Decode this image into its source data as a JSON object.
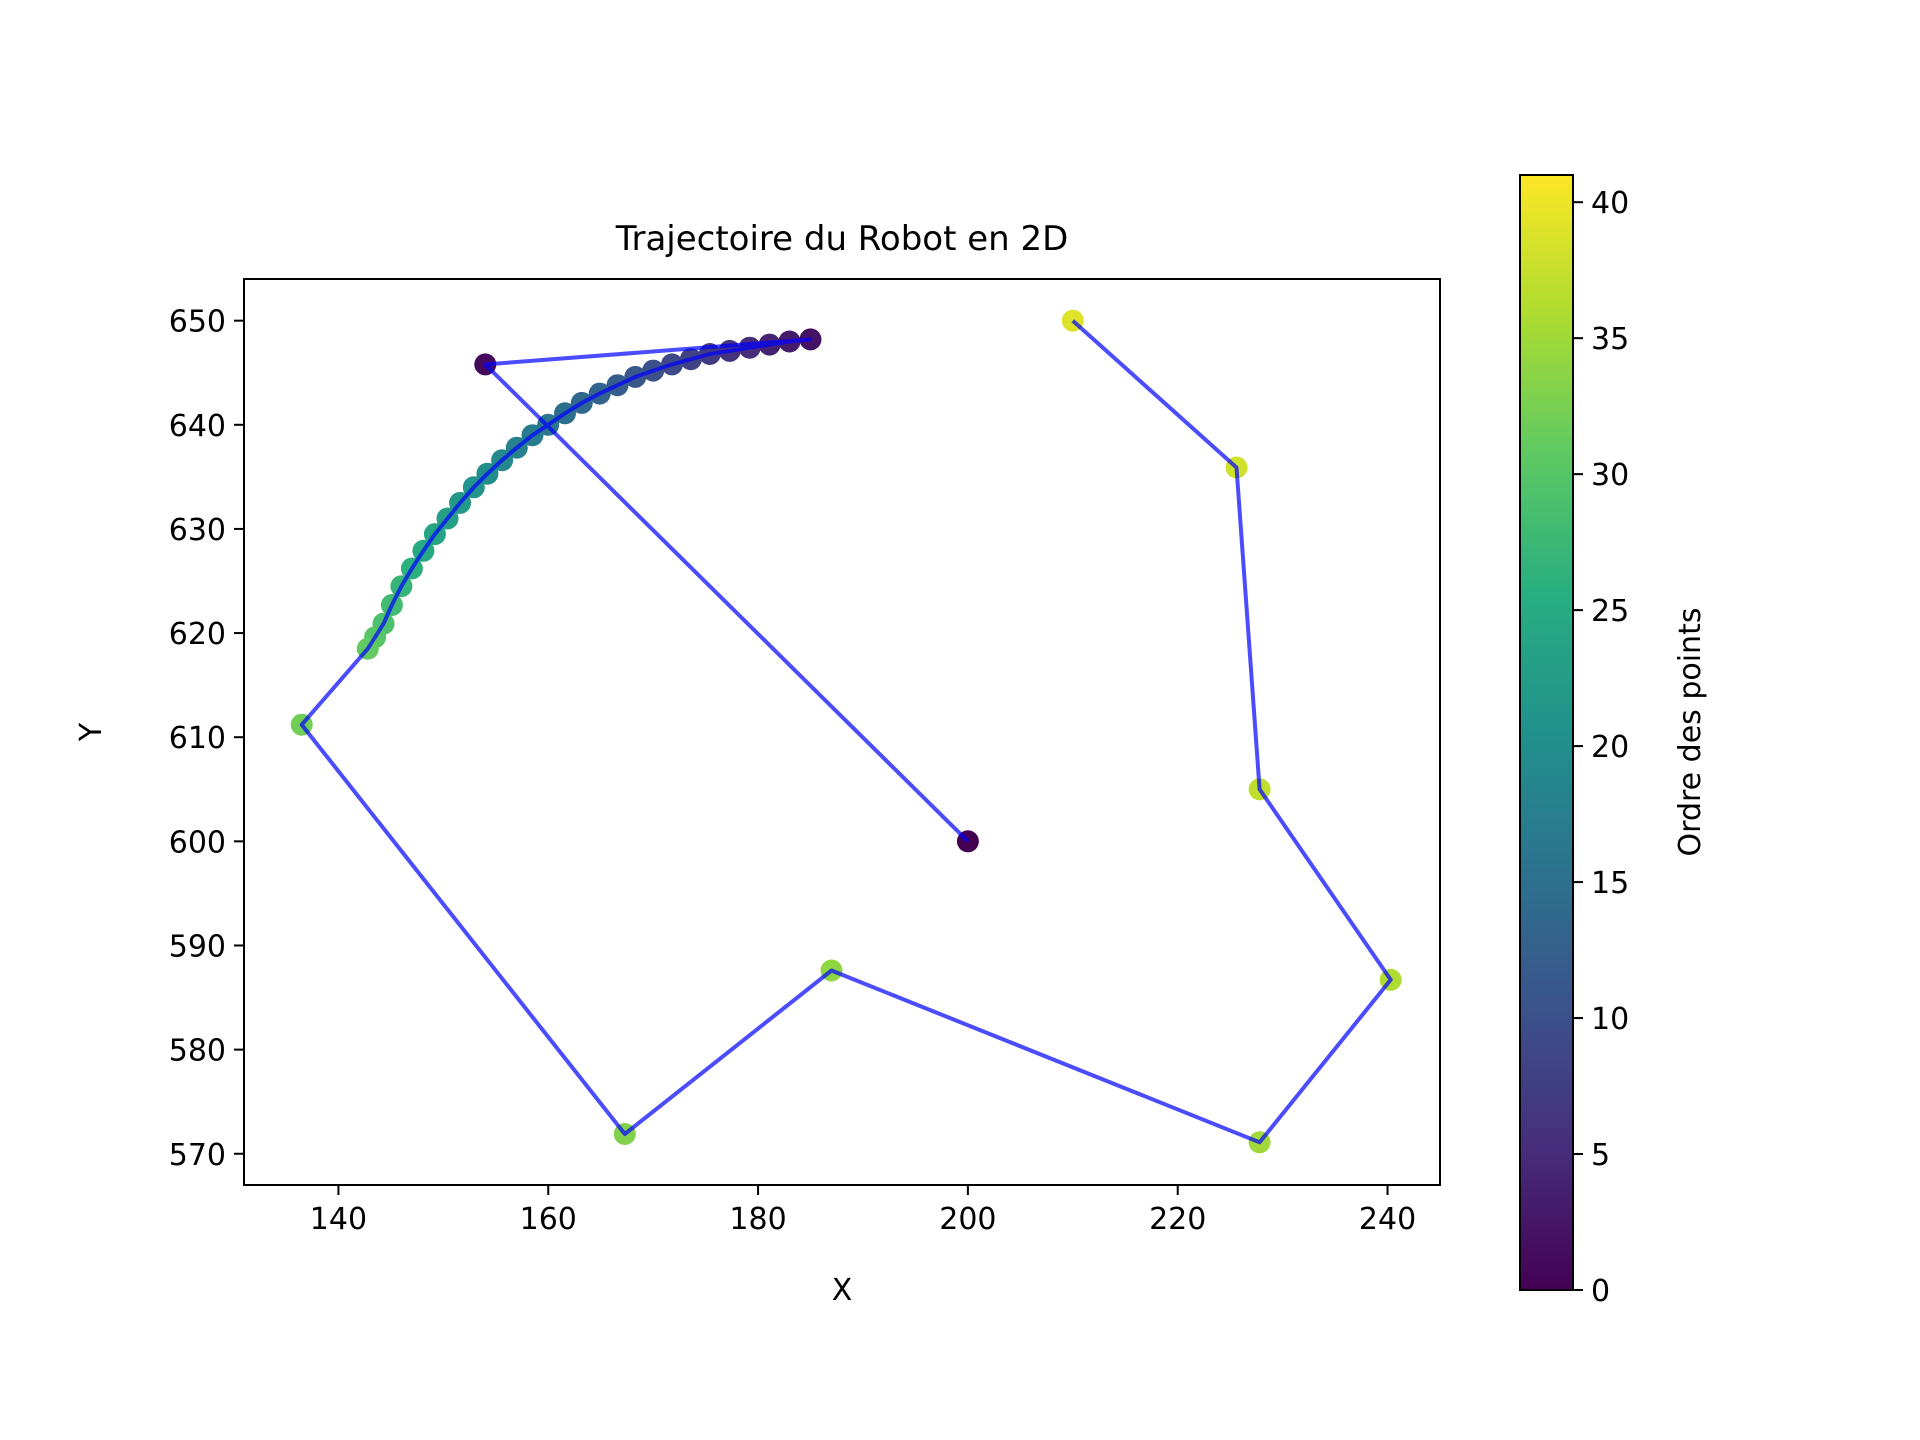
{
  "chart_data": {
    "type": "scatter",
    "title": "Trajectoire du Robot en 2D",
    "xlabel": "X",
    "ylabel": "Y",
    "xlim": [
      131,
      245
    ],
    "ylim": [
      567,
      654
    ],
    "xticks": [
      140,
      160,
      180,
      200,
      220,
      240
    ],
    "yticks": [
      570,
      580,
      590,
      600,
      610,
      620,
      630,
      640,
      650
    ],
    "grid": false,
    "line_color": "#0000ff",
    "colorbar": {
      "label": "Ordre des points",
      "range": [
        0,
        41
      ],
      "ticks": [
        0,
        5,
        10,
        15,
        20,
        25,
        30,
        35,
        40
      ],
      "colormap": "viridis"
    },
    "points": [
      {
        "x": 200.0,
        "y": 600.0
      },
      {
        "x": 154.0,
        "y": 645.8
      },
      {
        "x": 185.0,
        "y": 648.2
      },
      {
        "x": 183.0,
        "y": 648.0
      },
      {
        "x": 181.1,
        "y": 647.7
      },
      {
        "x": 179.2,
        "y": 647.4
      },
      {
        "x": 177.3,
        "y": 647.1
      },
      {
        "x": 175.4,
        "y": 646.8
      },
      {
        "x": 173.6,
        "y": 646.3
      },
      {
        "x": 171.8,
        "y": 645.8
      },
      {
        "x": 170.0,
        "y": 645.2
      },
      {
        "x": 168.3,
        "y": 644.6
      },
      {
        "x": 166.6,
        "y": 643.8
      },
      {
        "x": 164.9,
        "y": 643.0
      },
      {
        "x": 163.2,
        "y": 642.1
      },
      {
        "x": 161.6,
        "y": 641.1
      },
      {
        "x": 160.0,
        "y": 640.0
      },
      {
        "x": 158.5,
        "y": 639.0
      },
      {
        "x": 157.0,
        "y": 637.8
      },
      {
        "x": 155.6,
        "y": 636.6
      },
      {
        "x": 154.2,
        "y": 635.3
      },
      {
        "x": 152.9,
        "y": 634.0
      },
      {
        "x": 151.6,
        "y": 632.5
      },
      {
        "x": 150.4,
        "y": 631.0
      },
      {
        "x": 149.2,
        "y": 629.5
      },
      {
        "x": 148.1,
        "y": 627.9
      },
      {
        "x": 147.0,
        "y": 626.2
      },
      {
        "x": 146.0,
        "y": 624.5
      },
      {
        "x": 145.1,
        "y": 622.7
      },
      {
        "x": 144.3,
        "y": 620.9
      },
      {
        "x": 143.5,
        "y": 619.6
      },
      {
        "x": 142.8,
        "y": 618.5
      },
      {
        "x": 136.5,
        "y": 611.2
      },
      {
        "x": 167.3,
        "y": 571.9
      },
      {
        "x": 187.0,
        "y": 587.6
      },
      {
        "x": 227.8,
        "y": 571.1
      },
      {
        "x": 240.3,
        "y": 586.7
      },
      {
        "x": 227.8,
        "y": 605.0
      },
      {
        "x": 225.6,
        "y": 635.9
      },
      {
        "x": 210.0,
        "y": 650.0
      }
    ]
  }
}
